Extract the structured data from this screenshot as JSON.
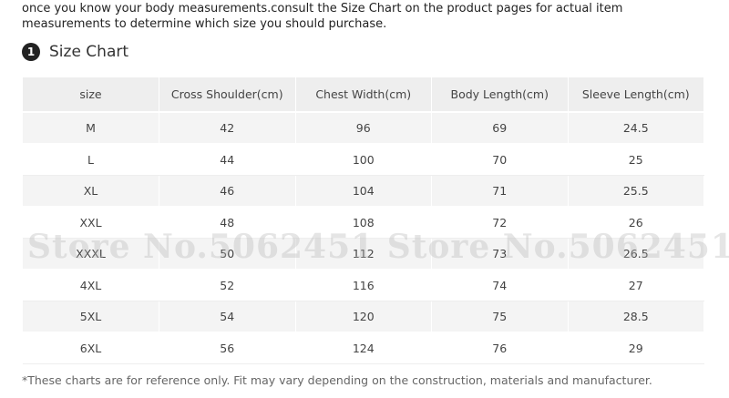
{
  "intro": "once you know your body measurements.consult the Size Chart on the product pages for actual item measurements to determine which size you should purchase.",
  "heading": {
    "number": "1",
    "title": "Size Chart"
  },
  "table": {
    "columns": [
      "size",
      "Cross Shoulder(cm)",
      "Chest Width(cm)",
      "Body Length(cm)",
      "Sleeve Length(cm)"
    ],
    "rows": [
      [
        "M",
        42,
        96,
        69,
        24.5
      ],
      [
        "L",
        44,
        100,
        70,
        25
      ],
      [
        "XL",
        46,
        104,
        71,
        25.5
      ],
      [
        "XXL",
        48,
        108,
        72,
        26
      ],
      [
        "XXXL",
        50,
        112,
        73,
        26.5
      ],
      [
        "4XL",
        52,
        116,
        74,
        27
      ],
      [
        "5XL",
        54,
        120,
        75,
        28.5
      ],
      [
        "6XL",
        56,
        124,
        76,
        29
      ]
    ]
  },
  "watermark": "Store No.5062451 Store No.5062451",
  "footnote": "*These charts are for reference only. Fit may vary depending on the construction, materials and manufacturer."
}
